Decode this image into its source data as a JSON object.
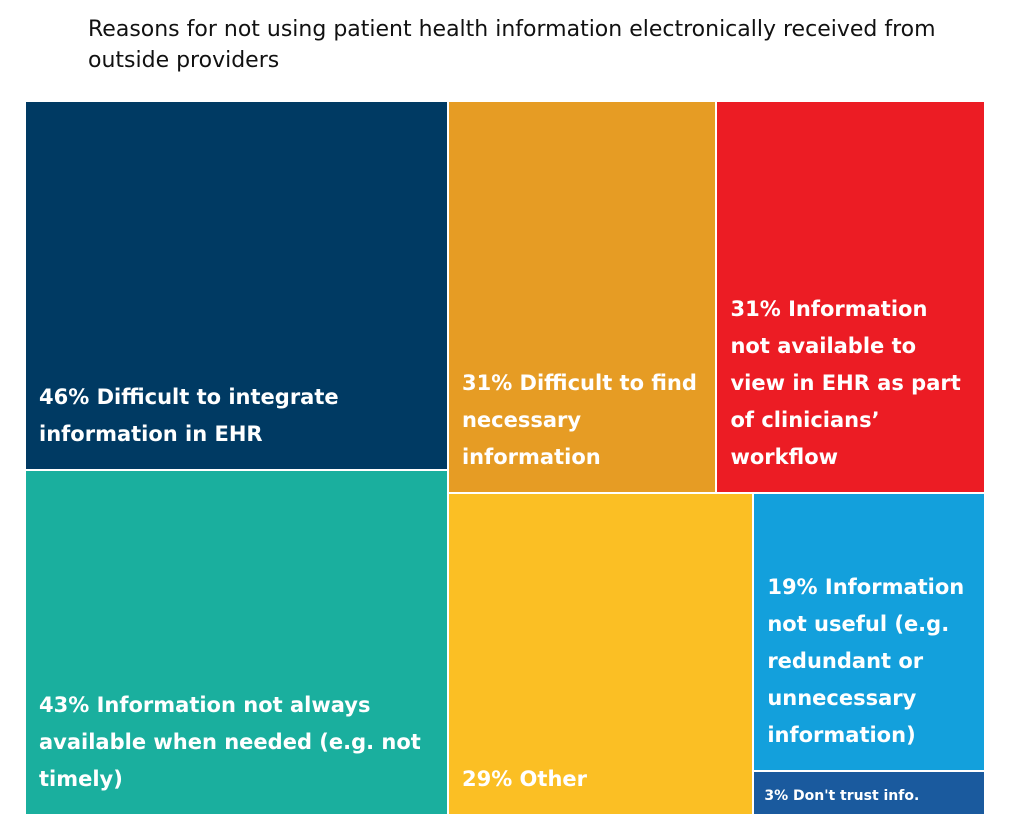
{
  "chart_data": {
    "type": "treemap",
    "title": "Reasons for not using patient health information electronically received from outside providers",
    "categories": [
      "Difficult to integrate information in EHR",
      "Information not always available when needed (e.g. not timely)",
      "Difficult to find necessary information",
      "Information not available to view in EHR as part of clinicians’ workflow",
      "Other",
      "Information not useful (e.g. redundant or unnecessary information)",
      "Don't trust info."
    ],
    "values": [
      46,
      43,
      31,
      31,
      29,
      19,
      3
    ],
    "value_labels": [
      "46%",
      "43%",
      "31%",
      "31%",
      "29%",
      "19%",
      "3%"
    ],
    "colors": [
      "#003a63",
      "#1aaf9e",
      "#e69c24",
      "#ec1c24",
      "#fbbf24",
      "#13a0dc",
      "#1a5a9e"
    ]
  }
}
